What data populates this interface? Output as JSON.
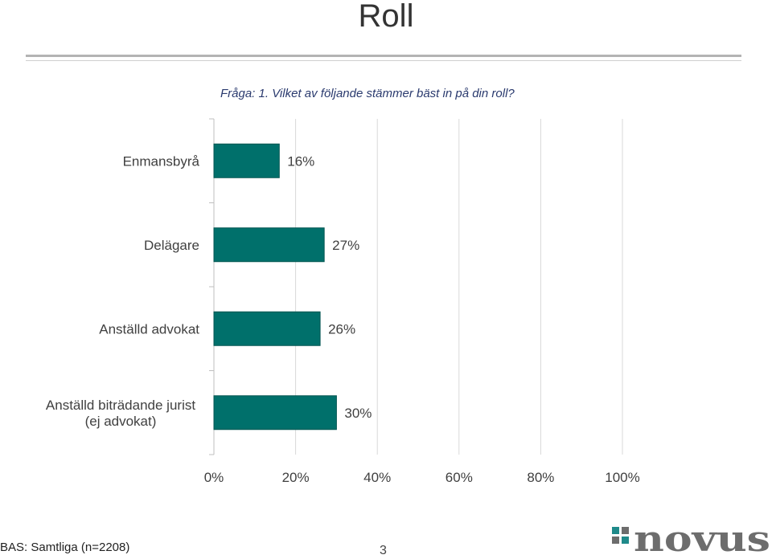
{
  "page": {
    "title": "Roll",
    "question": "Fråga: 1. Vilket av följande stämmer bäst in på din roll?",
    "base": "BAS: Samtliga (n=2208)",
    "page_number": "3",
    "logo_text": "novus"
  },
  "colors": {
    "bar": "#00706b",
    "bar_edge": "#005550",
    "grid": "#d9d9d9",
    "axis": "#bfbfbf",
    "text": "#404040",
    "logo_teal": "#1f8a8a",
    "logo_gray": "#6d6d6d"
  },
  "chart_data": {
    "type": "bar",
    "orientation": "horizontal",
    "categories": [
      "Enmansbyrå",
      "Delägare",
      "Anställd advokat",
      "Anställd biträdande jurist (ej advokat)"
    ],
    "values": [
      16,
      27,
      26,
      30
    ],
    "data_labels": [
      "16%",
      "27%",
      "26%",
      "30%"
    ],
    "xlim": [
      0,
      100
    ],
    "xticks": [
      0,
      20,
      40,
      60,
      80,
      100
    ],
    "xtick_labels": [
      "0%",
      "20%",
      "40%",
      "60%",
      "80%",
      "100%"
    ],
    "grid": true,
    "legend": "none"
  }
}
